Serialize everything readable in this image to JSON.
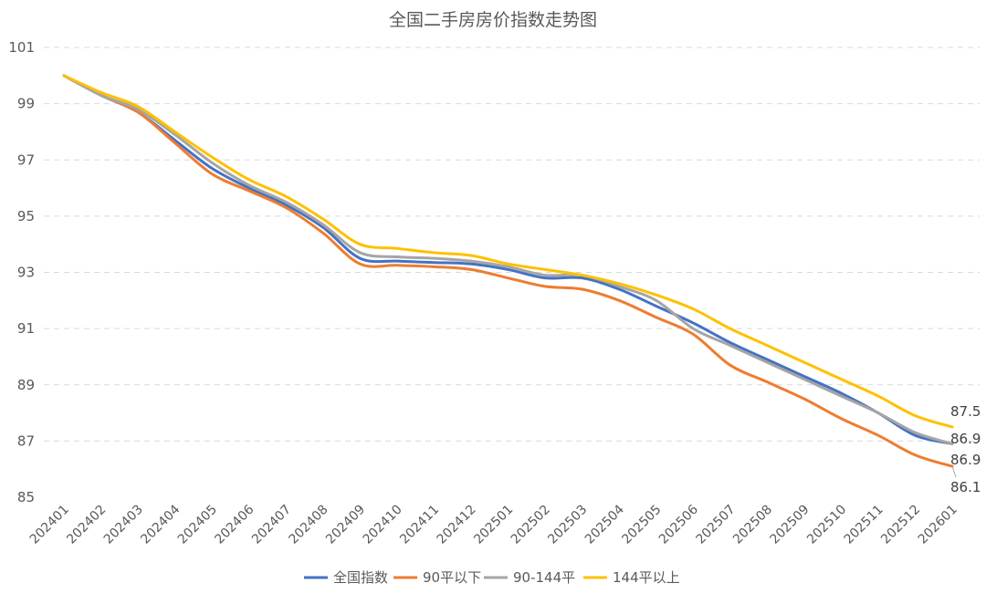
{
  "chart_data": {
    "type": "line",
    "title": "全国二手房房价指数走势图",
    "xlabel": "",
    "ylabel": "",
    "ylim": [
      85,
      101
    ],
    "yticks": [
      85,
      87,
      89,
      91,
      93,
      95,
      97,
      99,
      101
    ],
    "grid": true,
    "legend_position": "bottom",
    "categories": [
      "202401",
      "202402",
      "202403",
      "202404",
      "202405",
      "202406",
      "202407",
      "202408",
      "202409",
      "202410",
      "202411",
      "202412",
      "202501",
      "202502",
      "202503",
      "202504",
      "202505",
      "202506",
      "202507",
      "202508",
      "202509",
      "202510",
      "202511",
      "202512",
      "202601"
    ],
    "series": [
      {
        "name": "全国指数",
        "color": "#4472C4",
        "values": [
          100.0,
          99.3,
          98.7,
          97.7,
          96.7,
          96.0,
          95.4,
          94.6,
          93.5,
          93.4,
          93.35,
          93.3,
          93.1,
          92.8,
          92.8,
          92.4,
          91.8,
          91.2,
          90.5,
          89.9,
          89.3,
          88.7,
          88.0,
          87.2,
          86.9
        ],
        "end_label": "86.9"
      },
      {
        "name": "90平以下",
        "color": "#ED7D31",
        "values": [
          100.0,
          99.3,
          98.7,
          97.6,
          96.5,
          95.9,
          95.3,
          94.4,
          93.3,
          93.25,
          93.2,
          93.1,
          92.8,
          92.5,
          92.4,
          92.0,
          91.4,
          90.8,
          89.7,
          89.1,
          88.5,
          87.8,
          87.2,
          86.5,
          86.1
        ],
        "end_label": "86.1"
      },
      {
        "name": "90-144平",
        "color": "#A5A5A5",
        "values": [
          100.0,
          99.3,
          98.8,
          97.9,
          96.9,
          96.1,
          95.5,
          94.7,
          93.7,
          93.55,
          93.5,
          93.4,
          93.2,
          92.9,
          92.9,
          92.5,
          92.0,
          91.0,
          90.4,
          89.8,
          89.2,
          88.6,
          88.0,
          87.3,
          86.9
        ],
        "end_label": "86.9"
      },
      {
        "name": "144平以上",
        "color": "#FFC000",
        "values": [
          100.0,
          99.4,
          98.9,
          98.0,
          97.1,
          96.3,
          95.7,
          94.9,
          94.0,
          93.85,
          93.7,
          93.6,
          93.3,
          93.1,
          92.9,
          92.6,
          92.2,
          91.7,
          91.0,
          90.4,
          89.8,
          89.2,
          88.6,
          87.9,
          87.5
        ],
        "end_label": "87.5"
      }
    ]
  }
}
